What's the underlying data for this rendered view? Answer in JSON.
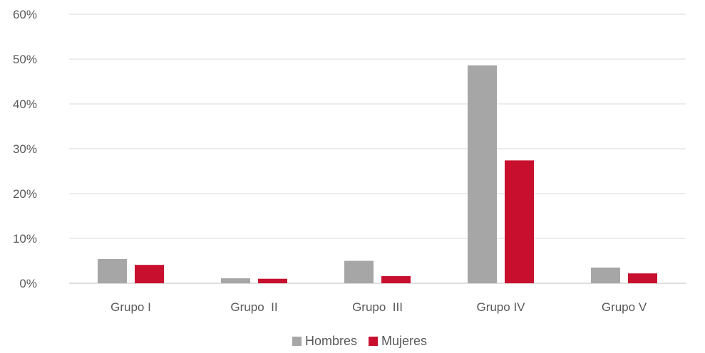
{
  "chart_data": {
    "type": "bar",
    "title": "",
    "xlabel": "",
    "ylabel": "",
    "categories": [
      "Grupo I",
      "Grupo  II",
      "Grupo  III",
      "Grupo IV",
      "Grupo V"
    ],
    "series": [
      {
        "name": "Hombres",
        "color": "#A6A6A6",
        "values": [
          5.4,
          1.1,
          5.0,
          48.6,
          3.5
        ]
      },
      {
        "name": "Mujeres",
        "color": "#C8102E",
        "values": [
          4.1,
          1.0,
          1.6,
          27.4,
          2.2
        ]
      }
    ],
    "ylim": [
      0,
      60
    ],
    "yticks": [
      0,
      10,
      20,
      30,
      40,
      50,
      60
    ],
    "ytick_labels": [
      "0%",
      "10%",
      "20%",
      "30%",
      "40%",
      "50%",
      "60%"
    ],
    "grid": true,
    "legend_position": "bottom"
  }
}
